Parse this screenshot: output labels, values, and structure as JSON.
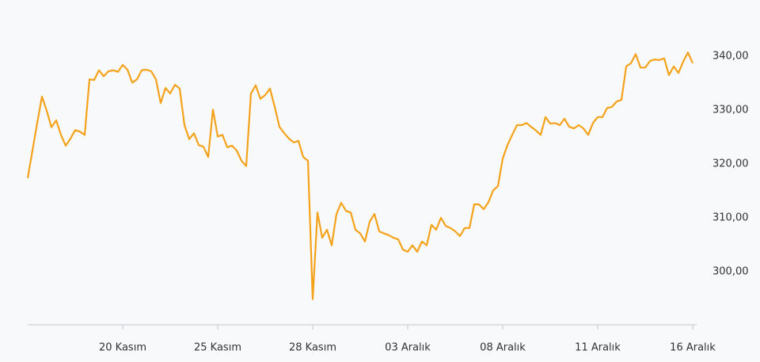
{
  "chart_data": {
    "type": "line",
    "categories": [
      null,
      null,
      null,
      null,
      null,
      null,
      null,
      null,
      null,
      null,
      null,
      null,
      null,
      null,
      null,
      null,
      null,
      null,
      null,
      null,
      "20 Kasım",
      null,
      null,
      null,
      null,
      null,
      null,
      null,
      null,
      null,
      null,
      null,
      null,
      null,
      null,
      null,
      null,
      null,
      null,
      null,
      "25 Kasım",
      null,
      null,
      null,
      null,
      null,
      null,
      null,
      null,
      null,
      null,
      null,
      null,
      null,
      null,
      null,
      null,
      null,
      null,
      null,
      "28 Kasım",
      null,
      null,
      null,
      null,
      null,
      null,
      null,
      null,
      null,
      null,
      null,
      null,
      null,
      null,
      null,
      null,
      null,
      null,
      null,
      "03 Aralık",
      null,
      null,
      null,
      null,
      null,
      null,
      null,
      null,
      null,
      null,
      null,
      null,
      null,
      null,
      null,
      null,
      null,
      null,
      null,
      "08 Aralık",
      null,
      null,
      null,
      null,
      null,
      null,
      null,
      null,
      null,
      null,
      null,
      null,
      null,
      null,
      null,
      null,
      null,
      null,
      null,
      "11 Aralık",
      null,
      null,
      null,
      null,
      null,
      null,
      null,
      null,
      null,
      null,
      null,
      null,
      null,
      null,
      null,
      null,
      null,
      null,
      null,
      "16 Aralık"
    ],
    "values": [
      317.4,
      322.5,
      327.6,
      332.5,
      329.9,
      326.8,
      328.1,
      325.4,
      323.4,
      324.7,
      326.3,
      326.0,
      325.4,
      335.7,
      335.6,
      337.4,
      336.3,
      337.2,
      337.4,
      337.1,
      338.4,
      337.5,
      335.1,
      335.7,
      337.4,
      337.5,
      337.2,
      335.7,
      331.3,
      334.1,
      333.1,
      334.7,
      334.0,
      327.2,
      324.6,
      325.7,
      323.5,
      323.2,
      321.3,
      330.1,
      325.1,
      325.4,
      323.1,
      323.4,
      322.5,
      320.6,
      319.6,
      333.1,
      334.6,
      332.1,
      332.8,
      334.0,
      330.6,
      326.9,
      325.7,
      324.7,
      324.0,
      324.3,
      321.3,
      320.6,
      294.9,
      311.0,
      306.3,
      307.8,
      304.9,
      310.7,
      312.8,
      311.3,
      311.0,
      307.8,
      307.1,
      305.6,
      309.3,
      310.7,
      307.5,
      307.1,
      306.8,
      306.3,
      306.0,
      304.1,
      303.7,
      304.9,
      303.7,
      305.6,
      304.9,
      308.7,
      307.8,
      310.0,
      308.5,
      308.1,
      307.5,
      306.6,
      308.1,
      308.1,
      312.5,
      312.5,
      311.6,
      312.9,
      315.1,
      315.9,
      321.0,
      323.5,
      325.4,
      327.2,
      327.2,
      327.6,
      326.9,
      326.2,
      325.4,
      328.7,
      327.5,
      327.6,
      327.2,
      328.4,
      326.9,
      326.6,
      327.2,
      326.6,
      325.4,
      327.6,
      328.7,
      328.7,
      330.4,
      330.6,
      331.6,
      331.9,
      338.1,
      338.7,
      340.4,
      337.9,
      337.9,
      339.1,
      339.4,
      339.3,
      339.6,
      336.5,
      338.1,
      336.9,
      339.0,
      340.7,
      338.7
    ],
    "color": "#f5a21b",
    "ylim": [
      290,
      345
    ],
    "yticks": [
      {
        "value": 300,
        "label": "300,00"
      },
      {
        "value": 310,
        "label": "310,00"
      },
      {
        "value": 320,
        "label": "320,00"
      },
      {
        "value": 330,
        "label": "330,00"
      },
      {
        "value": 340,
        "label": "340,00"
      }
    ],
    "grid": false
  }
}
